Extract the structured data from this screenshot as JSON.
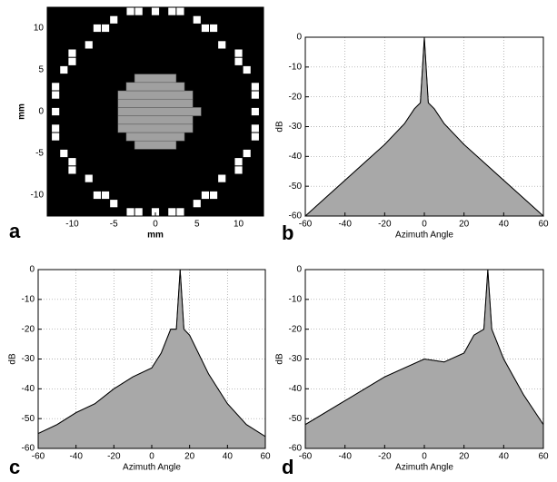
{
  "chart_data": [
    {
      "type": "pixel_map",
      "panel": "a",
      "xlabel": "mm",
      "ylabel": "mm",
      "xlim": [
        -13,
        13
      ],
      "ylim": [
        -12.5,
        12.5
      ],
      "xticks": [
        -10,
        -5,
        0,
        5,
        10
      ],
      "yticks": [
        -10,
        -5,
        0,
        5,
        10
      ],
      "background": "#000000",
      "ring_color": "#ffffff",
      "fill_color": "#a0a0a0",
      "ring_x": [
        12,
        12,
        12,
        11,
        10,
        10,
        8,
        7,
        6,
        5,
        3,
        2,
        0,
        -2,
        -3,
        -5,
        -6,
        -7,
        -8,
        -10,
        -10,
        -11,
        -12,
        -12,
        -12,
        -12,
        -12,
        -11,
        -10,
        -10,
        -8,
        -7,
        -6,
        -5,
        -3,
        -2,
        0,
        2,
        3,
        5,
        6,
        7,
        8,
        10,
        10,
        11,
        12,
        12
      ],
      "ring_y": [
        0,
        2,
        3,
        5,
        6,
        7,
        8,
        10,
        10,
        11,
        12,
        12,
        12,
        12,
        12,
        11,
        10,
        10,
        8,
        7,
        6,
        5,
        3,
        2,
        0,
        -2,
        -3,
        -5,
        -6,
        -7,
        -8,
        -10,
        -10,
        -11,
        -12,
        -12,
        -12,
        -12,
        -12,
        -11,
        -10,
        -10,
        -8,
        -7,
        -6,
        -5,
        -3,
        -2
      ],
      "fill_y": [
        -4,
        -3,
        -2,
        -1,
        0,
        1,
        2,
        3,
        4
      ],
      "fill_x_from": [
        -2,
        -3,
        -4,
        -4,
        -4,
        -4,
        -4,
        -3,
        -2
      ],
      "fill_x_to": [
        2,
        3,
        4,
        4,
        5,
        4,
        4,
        3,
        2
      ]
    },
    {
      "type": "surface",
      "panel": "b",
      "xlabel": "Azimuth Angle",
      "ylabel": "dB",
      "xlim": [
        -60,
        60
      ],
      "ylim": [
        -60,
        0
      ],
      "xticks": [
        -60,
        -40,
        -20,
        0,
        20,
        40,
        60
      ],
      "yticks": [
        0,
        -10,
        -20,
        -30,
        -40,
        -50,
        -60
      ],
      "grid": true,
      "color": "#a8a8a8",
      "x": [
        -60,
        -50,
        -40,
        -30,
        -20,
        -10,
        -5,
        -2,
        0,
        2,
        5,
        10,
        20,
        30,
        40,
        50,
        60
      ],
      "values": [
        -60,
        -54,
        -48,
        -42,
        -36,
        -29,
        -24,
        -22,
        0,
        -22,
        -24,
        -29,
        -36,
        -42,
        -48,
        -54,
        -60
      ]
    },
    {
      "type": "surface",
      "panel": "c",
      "xlabel": "Azimuth Angle",
      "ylabel": "dB",
      "xlim": [
        -60,
        60
      ],
      "ylim": [
        -60,
        0
      ],
      "xticks": [
        -60,
        -40,
        -20,
        0,
        20,
        40,
        60
      ],
      "yticks": [
        0,
        -10,
        -20,
        -30,
        -40,
        -50,
        -60
      ],
      "grid": true,
      "color": "#a8a8a8",
      "x": [
        -60,
        -50,
        -40,
        -30,
        -20,
        -10,
        0,
        5,
        10,
        13,
        15,
        17,
        20,
        30,
        40,
        50,
        60
      ],
      "values": [
        -55,
        -52,
        -48,
        -45,
        -40,
        -36,
        -33,
        -28,
        -20,
        -20,
        0,
        -20,
        -22,
        -35,
        -45,
        -52,
        -56
      ]
    },
    {
      "type": "surface",
      "panel": "d",
      "xlabel": "Azimuth Angle",
      "ylabel": "dB",
      "xlim": [
        -60,
        60
      ],
      "ylim": [
        -60,
        0
      ],
      "xticks": [
        -60,
        -40,
        -20,
        0,
        20,
        40,
        60
      ],
      "yticks": [
        0,
        -10,
        -20,
        -30,
        -40,
        -50,
        -60
      ],
      "grid": true,
      "color": "#a8a8a8",
      "x": [
        -60,
        -50,
        -40,
        -30,
        -20,
        -10,
        0,
        10,
        20,
        25,
        30,
        32,
        34,
        40,
        50,
        60
      ],
      "values": [
        -52,
        -48,
        -44,
        -40,
        -36,
        -33,
        -30,
        -31,
        -28,
        -22,
        -20,
        0,
        -20,
        -30,
        -42,
        -52
      ]
    }
  ]
}
